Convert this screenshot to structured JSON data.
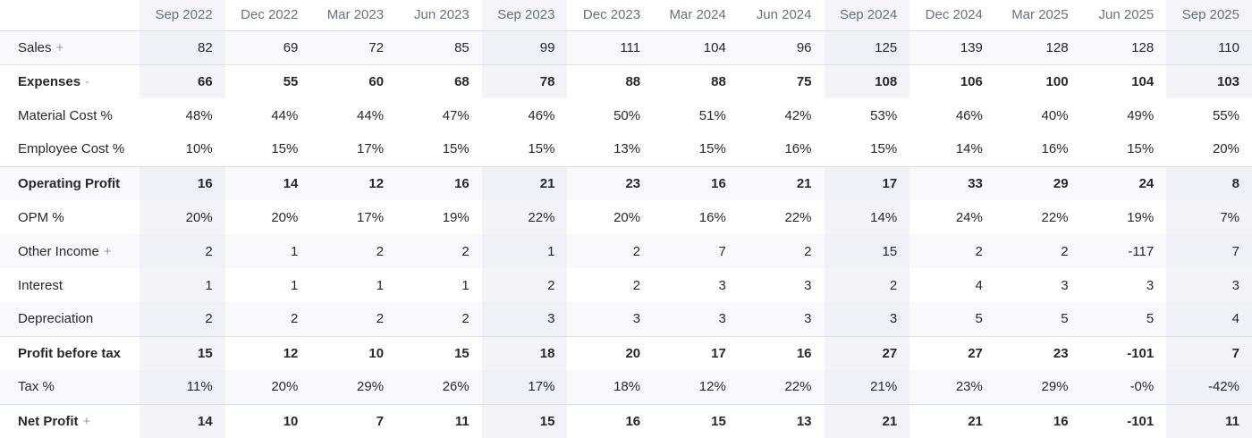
{
  "table": {
    "corner_label": "",
    "columns": [
      "Sep 2022",
      "Dec 2022",
      "Mar 2023",
      "Jun 2023",
      "Sep 2023",
      "Dec 2023",
      "Mar 2024",
      "Jun 2024",
      "Sep 2024",
      "Dec 2024",
      "Mar 2025",
      "Jun 2025",
      "Sep 2025"
    ],
    "highlight_column_indexes": [
      0,
      4,
      8,
      12
    ],
    "rows": [
      {
        "label": "Sales",
        "suffix": "+",
        "strong": false,
        "stripe": true,
        "rule": false,
        "child": false,
        "values": [
          "82",
          "69",
          "72",
          "85",
          "99",
          "111",
          "104",
          "96",
          "125",
          "139",
          "128",
          "128",
          "110"
        ]
      },
      {
        "label": "Expenses",
        "suffix": "-",
        "strong": true,
        "stripe": false,
        "rule": true,
        "child": false,
        "values": [
          "66",
          "55",
          "60",
          "68",
          "78",
          "88",
          "88",
          "75",
          "108",
          "106",
          "100",
          "104",
          "103"
        ]
      },
      {
        "label": "Material Cost %",
        "suffix": "",
        "strong": false,
        "stripe": false,
        "rule": false,
        "child": true,
        "values": [
          "48%",
          "44%",
          "44%",
          "47%",
          "46%",
          "50%",
          "51%",
          "42%",
          "53%",
          "46%",
          "40%",
          "49%",
          "55%"
        ]
      },
      {
        "label": "Employee Cost %",
        "suffix": "",
        "strong": false,
        "stripe": false,
        "rule": false,
        "child": true,
        "values": [
          "10%",
          "15%",
          "17%",
          "15%",
          "15%",
          "13%",
          "15%",
          "16%",
          "15%",
          "14%",
          "16%",
          "15%",
          "20%"
        ]
      },
      {
        "label": "Operating Profit",
        "suffix": "",
        "strong": true,
        "stripe": true,
        "rule": true,
        "child": false,
        "values": [
          "16",
          "14",
          "12",
          "16",
          "21",
          "23",
          "16",
          "21",
          "17",
          "33",
          "29",
          "24",
          "8"
        ]
      },
      {
        "label": "OPM %",
        "suffix": "",
        "strong": false,
        "stripe": false,
        "rule": false,
        "child": false,
        "values": [
          "20%",
          "20%",
          "17%",
          "19%",
          "22%",
          "20%",
          "16%",
          "22%",
          "14%",
          "24%",
          "22%",
          "19%",
          "7%"
        ]
      },
      {
        "label": "Other Income",
        "suffix": "+",
        "strong": false,
        "stripe": true,
        "rule": false,
        "child": false,
        "values": [
          "2",
          "1",
          "2",
          "2",
          "1",
          "2",
          "7",
          "2",
          "15",
          "2",
          "2",
          "-117",
          "7"
        ]
      },
      {
        "label": "Interest",
        "suffix": "",
        "strong": false,
        "stripe": false,
        "rule": false,
        "child": false,
        "values": [
          "1",
          "1",
          "1",
          "1",
          "2",
          "2",
          "3",
          "3",
          "2",
          "4",
          "3",
          "3",
          "3"
        ]
      },
      {
        "label": "Depreciation",
        "suffix": "",
        "strong": false,
        "stripe": true,
        "rule": false,
        "child": false,
        "values": [
          "2",
          "2",
          "2",
          "2",
          "3",
          "3",
          "3",
          "3",
          "3",
          "5",
          "5",
          "5",
          "4"
        ]
      },
      {
        "label": "Profit before tax",
        "suffix": "",
        "strong": true,
        "stripe": false,
        "rule": true,
        "child": false,
        "values": [
          "15",
          "12",
          "10",
          "15",
          "18",
          "20",
          "17",
          "16",
          "27",
          "27",
          "23",
          "-101",
          "7"
        ]
      },
      {
        "label": "Tax %",
        "suffix": "",
        "strong": false,
        "stripe": true,
        "rule": false,
        "child": false,
        "values": [
          "11%",
          "20%",
          "29%",
          "26%",
          "17%",
          "18%",
          "12%",
          "22%",
          "21%",
          "23%",
          "29%",
          "-0%",
          "-42%"
        ]
      },
      {
        "label": "Net Profit",
        "suffix": "+",
        "strong": true,
        "stripe": false,
        "rule": true,
        "child": false,
        "values": [
          "14",
          "10",
          "7",
          "11",
          "15",
          "16",
          "15",
          "13",
          "21",
          "21",
          "16",
          "-101",
          "11"
        ]
      }
    ]
  },
  "colors": {
    "background": "#ffffff",
    "text": "#24292f",
    "header_text": "#68717f",
    "suffix_icon": "#959daa",
    "row_stripe": "#f8f9fc",
    "column_highlight": "#f2f4f9",
    "border": "#dbe0e7"
  }
}
